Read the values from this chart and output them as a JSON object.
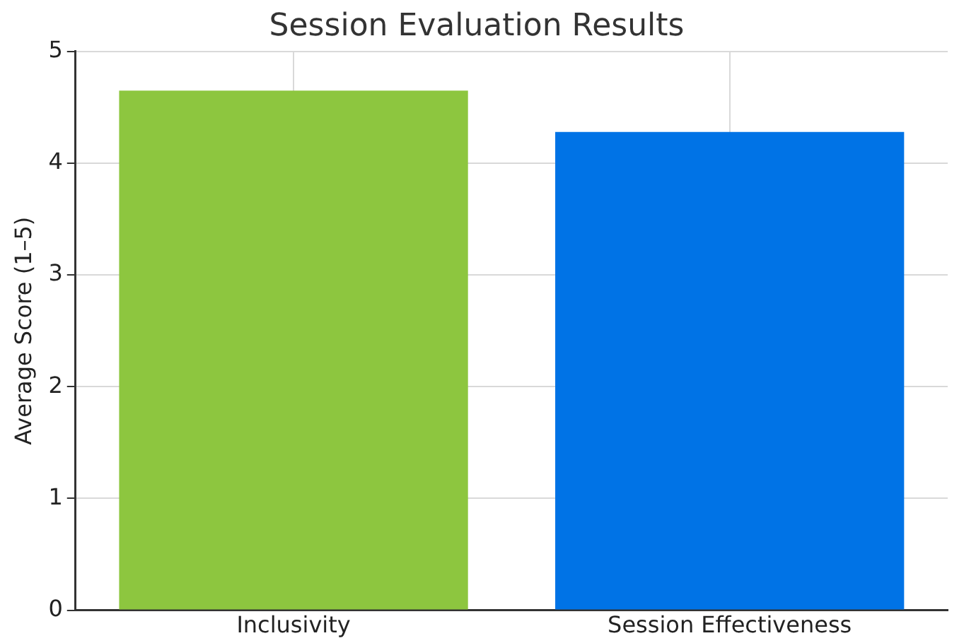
{
  "chart_data": {
    "type": "bar",
    "title": "Session Evaluation Results",
    "ylabel": "Average Score (1–5)",
    "categories": [
      "Inclusivity",
      "Session Effectiveness"
    ],
    "values": [
      4.65,
      4.28
    ],
    "colors": [
      "#8dc63f",
      "#0073e6"
    ],
    "ylim": [
      0,
      5
    ],
    "yticks": [
      0,
      1,
      2,
      3,
      4,
      5
    ],
    "grid": true
  }
}
